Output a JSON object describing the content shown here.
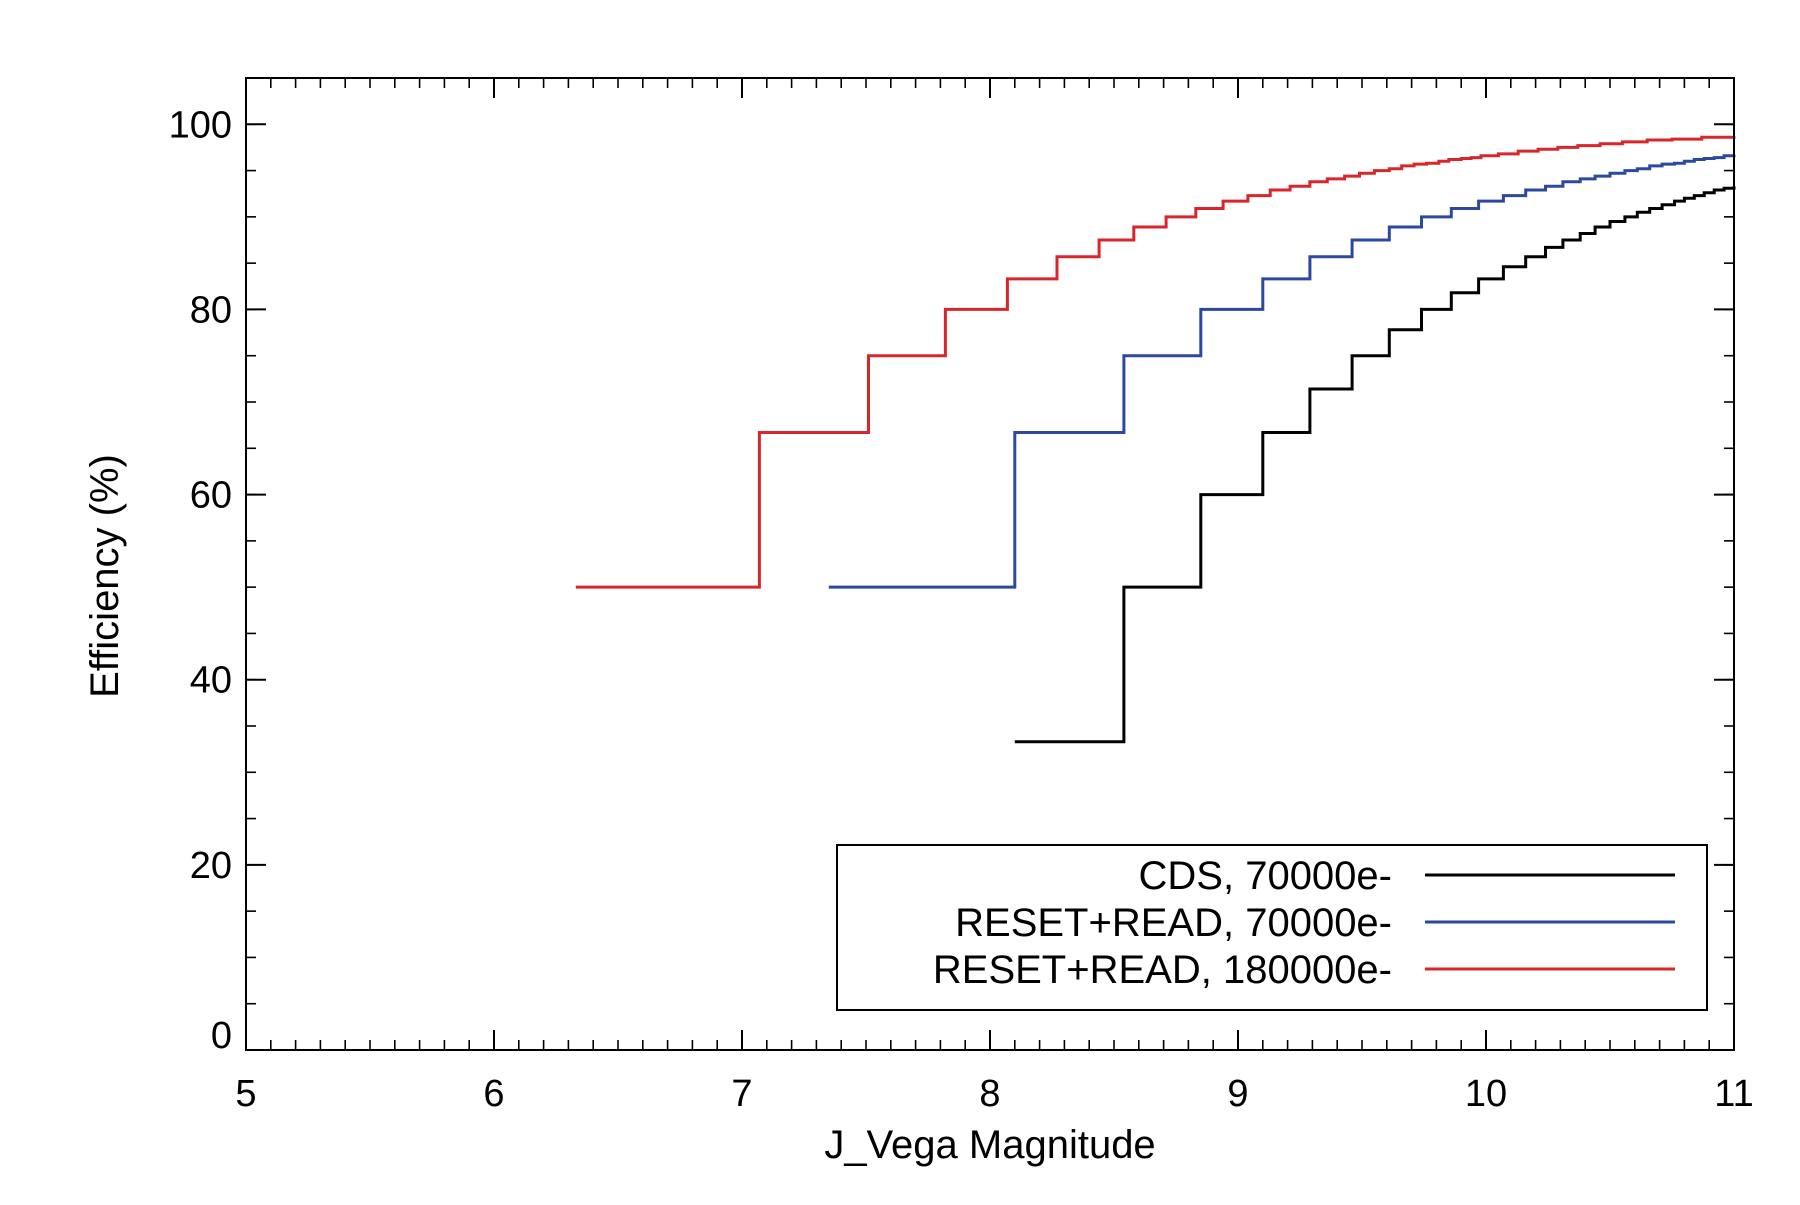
{
  "chart_data": {
    "type": "line",
    "line_style": "step",
    "title": "",
    "xlabel": "J_Vega Magnitude",
    "ylabel": "Efficiency (%)",
    "xlim": [
      5,
      11
    ],
    "ylim": [
      0,
      105
    ],
    "x_ticks": [
      5,
      6,
      7,
      8,
      9,
      10,
      11
    ],
    "x_tick_labels": [
      "5",
      "6",
      "7",
      "8",
      "9",
      "10",
      "11"
    ],
    "y_ticks": [
      0,
      20,
      40,
      60,
      80,
      100
    ],
    "y_tick_labels": [
      "0",
      "20",
      "40",
      "60",
      "80",
      "100"
    ],
    "x_minor_step": 0.1,
    "y_minor_step": 5,
    "grid": false,
    "legend_position": "bottom-right",
    "series": [
      {
        "name": "CDS, 70000e-",
        "color": "#000000",
        "steps": [
          [
            8.1,
            33.3
          ],
          [
            8.54,
            50.0
          ],
          [
            8.85,
            60.0
          ],
          [
            9.1,
            66.7
          ],
          [
            9.29,
            71.4
          ],
          [
            9.46,
            75.0
          ],
          [
            9.61,
            77.8
          ],
          [
            9.74,
            80.0
          ],
          [
            9.86,
            81.8
          ],
          [
            9.97,
            83.3
          ],
          [
            10.07,
            84.6
          ],
          [
            10.16,
            85.7
          ],
          [
            10.24,
            86.7
          ],
          [
            10.31,
            87.5
          ],
          [
            10.38,
            88.2
          ],
          [
            10.44,
            88.9
          ],
          [
            10.5,
            89.5
          ],
          [
            10.56,
            90.0
          ],
          [
            10.61,
            90.5
          ],
          [
            10.66,
            90.9
          ],
          [
            10.71,
            91.3
          ],
          [
            10.76,
            91.7
          ],
          [
            10.8,
            92.0
          ],
          [
            10.84,
            92.3
          ],
          [
            10.88,
            92.6
          ],
          [
            10.92,
            92.9
          ],
          [
            10.96,
            93.1
          ],
          [
            11.0,
            93.3
          ]
        ]
      },
      {
        "name": "RESET+READ, 70000e-",
        "color": "#2b4a9f",
        "steps": [
          [
            7.35,
            50.0
          ],
          [
            8.1,
            66.7
          ],
          [
            8.54,
            75.0
          ],
          [
            8.85,
            80.0
          ],
          [
            9.1,
            83.3
          ],
          [
            9.29,
            85.7
          ],
          [
            9.46,
            87.5
          ],
          [
            9.61,
            88.9
          ],
          [
            9.74,
            90.0
          ],
          [
            9.86,
            90.9
          ],
          [
            9.97,
            91.7
          ],
          [
            10.07,
            92.3
          ],
          [
            10.16,
            92.9
          ],
          [
            10.24,
            93.3
          ],
          [
            10.31,
            93.8
          ],
          [
            10.38,
            94.1
          ],
          [
            10.44,
            94.4
          ],
          [
            10.5,
            94.7
          ],
          [
            10.56,
            95.0
          ],
          [
            10.61,
            95.2
          ],
          [
            10.66,
            95.5
          ],
          [
            10.71,
            95.7
          ],
          [
            10.76,
            95.8
          ],
          [
            10.8,
            96.0
          ],
          [
            10.84,
            96.2
          ],
          [
            10.88,
            96.3
          ],
          [
            10.92,
            96.4
          ],
          [
            10.96,
            96.6
          ],
          [
            11.0,
            96.7
          ]
        ]
      },
      {
        "name": "RESET+READ, 180000e-",
        "color": "#d8262b",
        "steps": [
          [
            6.33,
            50.0
          ],
          [
            7.07,
            66.7
          ],
          [
            7.51,
            75.0
          ],
          [
            7.82,
            80.0
          ],
          [
            8.07,
            83.3
          ],
          [
            8.27,
            85.7
          ],
          [
            8.44,
            87.5
          ],
          [
            8.58,
            88.9
          ],
          [
            8.71,
            90.0
          ],
          [
            8.83,
            90.9
          ],
          [
            8.94,
            91.7
          ],
          [
            9.04,
            92.3
          ],
          [
            9.13,
            92.9
          ],
          [
            9.21,
            93.3
          ],
          [
            9.29,
            93.8
          ],
          [
            9.36,
            94.1
          ],
          [
            9.43,
            94.4
          ],
          [
            9.49,
            94.7
          ],
          [
            9.55,
            95.0
          ],
          [
            9.61,
            95.2
          ],
          [
            9.66,
            95.5
          ],
          [
            9.71,
            95.7
          ],
          [
            9.76,
            95.8
          ],
          [
            9.81,
            96.0
          ],
          [
            9.85,
            96.2
          ],
          [
            9.9,
            96.3
          ],
          [
            9.94,
            96.4
          ],
          [
            9.98,
            96.6
          ],
          [
            10.05,
            96.8
          ],
          [
            10.13,
            97.1
          ],
          [
            10.21,
            97.3
          ],
          [
            10.29,
            97.5
          ],
          [
            10.37,
            97.7
          ],
          [
            10.46,
            97.9
          ],
          [
            10.55,
            98.1
          ],
          [
            10.65,
            98.3
          ],
          [
            10.75,
            98.4
          ],
          [
            10.87,
            98.6
          ],
          [
            11.0,
            98.7
          ]
        ]
      }
    ]
  }
}
